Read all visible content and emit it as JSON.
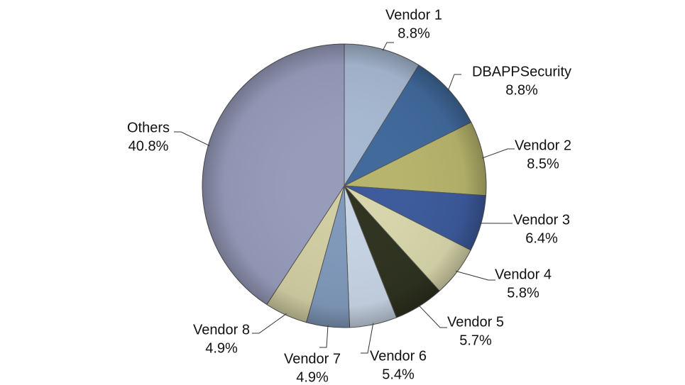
{
  "chart_data": {
    "type": "pie",
    "categories": [
      "Vendor 1",
      "DBAPPSecurity",
      "Vendor 2",
      "Vendor 3",
      "Vendor 4",
      "Vendor 5",
      "Vendor 6",
      "Vendor 7",
      "Vendor 8",
      "Others"
    ],
    "values": [
      8.8,
      8.8,
      8.5,
      6.4,
      5.8,
      5.7,
      5.4,
      4.9,
      4.9,
      40.8
    ],
    "value_labels": [
      "8.8%",
      "8.8%",
      "8.5%",
      "6.4%",
      "5.8%",
      "5.7%",
      "5.4%",
      "4.9%",
      "4.9%",
      "40.8%"
    ],
    "colors": [
      "#a7b9d2",
      "#40699b",
      "#b7b56c",
      "#3c5a9c",
      "#d8d6ab",
      "#2e321f",
      "#c7d4e4",
      "#8099bb",
      "#d1cea3",
      "#979cbb"
    ]
  }
}
